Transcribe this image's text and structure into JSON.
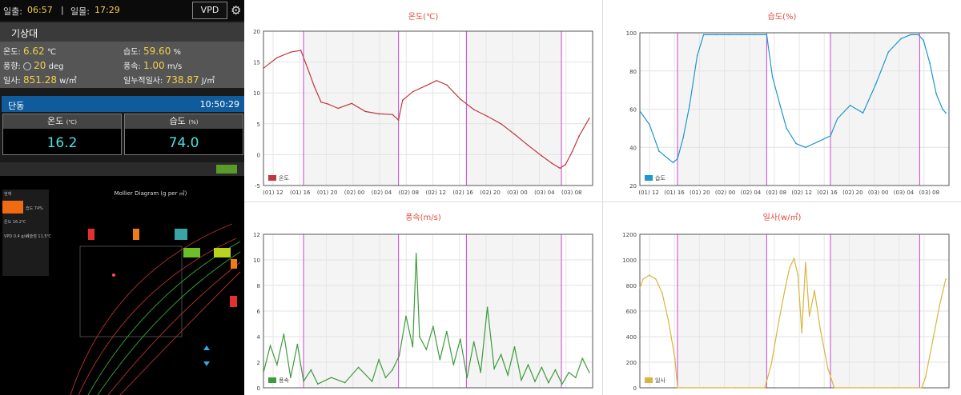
{
  "topbar": {
    "sunrise_label": "일출:",
    "sunrise_time": "06:57",
    "separator": "|",
    "sunset_label": "일몰:",
    "sunset_time": "17:29",
    "vpd_label": "VPD",
    "settings_icon": "gear-icon"
  },
  "weather": {
    "title": "기상대",
    "temp_label": "온도:",
    "temp_value": "6.62",
    "temp_unit": "℃",
    "humidity_label": "습도:",
    "humidity_value": "59.60",
    "humidity_unit": "%",
    "wind_dir_label": "풍향:",
    "wind_dir_value": "20",
    "wind_dir_unit": "deg",
    "wind_speed_label": "풍속:",
    "wind_speed_value": "1.00",
    "wind_speed_unit": "m/s",
    "solar_label": "일사:",
    "solar_value": "851.28",
    "solar_unit": "w/㎡",
    "cum_solar_label": "일누적일사:",
    "cum_solar_value": "738.87",
    "cum_solar_unit": "J/㎡"
  },
  "dong": {
    "name": "단동",
    "time": "10:50:29",
    "temp_label": "온도",
    "temp_unit": "(℃)",
    "temp_value": "16.2",
    "humidity_label": "습도",
    "humidity_unit": "(%)",
    "humidity_value": "74.0"
  },
  "mollier": {
    "title": "Mollier Diagram (g per ㎥)",
    "panel_items": [
      "현재",
      "온도  16.2℃",
      "습도  74%",
      "VPD 0.4 g/㎥",
      "이슬점 11.5℃"
    ]
  },
  "colors": {
    "temp": "#c0393f",
    "humidity": "#1f97cc",
    "wind": "#3d9b3d",
    "solar": "#d9b53d",
    "title": "#e04a3c",
    "marker": "#cc44cc"
  },
  "chart_data": [
    {
      "type": "line",
      "title": "온도(℃)",
      "legend": "온도",
      "legend_position": "bottom-left",
      "grid": true,
      "x_range": [
        0,
        48.5
      ],
      "ylim": [
        -5,
        20
      ],
      "yticks": [
        "20",
        "15",
        "10",
        "5",
        "0",
        "-5"
      ],
      "ytick_values": [
        20,
        15,
        10,
        5,
        0,
        -5
      ],
      "xticks": [
        "(01) 12",
        "(01) 16",
        "(01) 20",
        "(02) 00",
        "(02) 04",
        "(02) 08",
        "(02) 12",
        "(02) 16",
        "(02) 20",
        "(03) 00",
        "(03) 04",
        "(03) 08"
      ],
      "xtick_values": [
        1.4,
        5.4,
        9.4,
        13.4,
        17.4,
        21.4,
        25.4,
        29.4,
        33.4,
        37.4,
        41.4,
        45.4
      ],
      "markers": [
        5.9,
        19.9,
        29.9,
        43.9
      ],
      "shade": [
        [
          5.9,
          19.9
        ],
        [
          29.9,
          43.9
        ]
      ],
      "x": [
        0,
        2,
        4,
        5.5,
        6.5,
        7.5,
        8.5,
        9.5,
        11,
        13,
        15,
        17,
        19,
        19.9,
        20.5,
        22,
        24,
        25.5,
        27,
        29,
        31,
        33,
        35,
        37,
        39,
        41,
        42.5,
        43.7,
        44.5,
        45.5,
        46.5,
        48
      ],
      "values": [
        14,
        15.7,
        16.6,
        16.9,
        14,
        11,
        8.5,
        8.2,
        7.5,
        8.3,
        7,
        6.6,
        6.5,
        5.6,
        8.8,
        10.2,
        11.2,
        12,
        11.3,
        9,
        7.3,
        6.2,
        5,
        3.3,
        1.5,
        -0.2,
        -1.4,
        -2.2,
        -1.6,
        0.5,
        3,
        5.9
      ]
    },
    {
      "type": "line",
      "title": "습도(%)",
      "legend": "습도",
      "legend_position": "bottom-left",
      "grid": true,
      "x_range": [
        0,
        48.5
      ],
      "ylim": [
        20,
        100
      ],
      "yticks": [
        "100",
        "80",
        "60",
        "40",
        "20"
      ],
      "ytick_values": [
        100,
        80,
        60,
        40,
        20
      ],
      "xticks": [
        "(01) 12",
        "(01) 16",
        "(01) 20",
        "(02) 00",
        "(02) 04",
        "(02) 08",
        "(02) 12",
        "(02) 16",
        "(02) 20",
        "(03) 00",
        "(03) 04",
        "(03) 08"
      ],
      "xtick_values": [
        1.4,
        5.4,
        9.4,
        13.4,
        17.4,
        21.4,
        25.4,
        29.4,
        33.4,
        37.4,
        41.4,
        45.4
      ],
      "markers": [
        5.9,
        19.9,
        29.9,
        43.9
      ],
      "shade": [
        [
          5.9,
          19.9
        ],
        [
          29.9,
          43.9
        ]
      ],
      "x": [
        0,
        1.5,
        3,
        5.2,
        5.9,
        6.8,
        7.8,
        9,
        10,
        12,
        14,
        16,
        18,
        19.9,
        20.8,
        22,
        23,
        24.5,
        26,
        28,
        29.9,
        31,
        33,
        35,
        37,
        39,
        41,
        42.5,
        43.7,
        44.5,
        45.5,
        46.5,
        47.5,
        48
      ],
      "values": [
        59,
        52,
        38,
        32,
        34,
        45,
        62,
        88,
        99,
        99,
        99,
        99,
        99,
        99,
        77,
        62,
        50,
        42,
        40,
        43,
        46,
        55,
        62,
        58,
        73,
        90,
        97,
        99,
        99,
        96,
        84,
        68,
        60,
        58
      ]
    },
    {
      "type": "line",
      "title": "풍속(m/s)",
      "legend": "풍속",
      "legend_position": "bottom-left",
      "grid": true,
      "x_range": [
        0,
        48.5
      ],
      "ylim": [
        0,
        12
      ],
      "yticks": [
        "12",
        "10",
        "8",
        "6",
        "4",
        "2",
        "0"
      ],
      "ytick_values": [
        12,
        10,
        8,
        6,
        4,
        2,
        0
      ],
      "xticks": [],
      "xtick_values": [],
      "markers": [
        5.9,
        19.9,
        29.9,
        43.9
      ],
      "shade": [
        [
          5.9,
          19.9
        ],
        [
          29.9,
          43.9
        ]
      ],
      "x": [
        0,
        1,
        2,
        3,
        4,
        5,
        5.9,
        7,
        8,
        10,
        12,
        14,
        16,
        17,
        18,
        19,
        20,
        21,
        22,
        22.5,
        23,
        24,
        25,
        26,
        27,
        28,
        29,
        30,
        31,
        32,
        33,
        34,
        35,
        36,
        37,
        38,
        39,
        40,
        41,
        42,
        43,
        44,
        45,
        46,
        47,
        48
      ],
      "values": [
        1.2,
        3.3,
        1.8,
        4.2,
        0.8,
        3.4,
        0.5,
        1.4,
        0.3,
        0.8,
        0.4,
        1.6,
        0.5,
        2.2,
        0.8,
        1.4,
        2.5,
        5.6,
        3.2,
        10.5,
        4,
        3,
        4.8,
        2.2,
        4.4,
        1.8,
        3.8,
        0.8,
        3.6,
        1.2,
        6.3,
        1.5,
        2.6,
        1,
        3.2,
        0.6,
        1.8,
        0.5,
        1.6,
        0.4,
        1.4,
        0.3,
        1.2,
        0.8,
        2.3,
        1.2
      ]
    },
    {
      "type": "line",
      "title": "일사(w/㎡)",
      "legend": "일사",
      "legend_position": "bottom-left",
      "grid": true,
      "x_range": [
        0,
        48.5
      ],
      "ylim": [
        0,
        1200
      ],
      "yticks": [
        "1200",
        "1000",
        "800",
        "600",
        "400",
        "200",
        "0"
      ],
      "ytick_values": [
        1200,
        1000,
        800,
        600,
        400,
        200,
        0
      ],
      "xticks": [],
      "xtick_values": [],
      "markers": [
        5.9,
        19.9,
        29.9,
        43.9
      ],
      "shade": [
        [
          5.9,
          19.9
        ],
        [
          29.9,
          43.9
        ]
      ],
      "x": [
        0,
        0.5,
        1.5,
        2.5,
        3.5,
        4.5,
        5.5,
        5.9,
        6.5,
        10,
        15,
        19.6,
        20.6,
        21.8,
        22.8,
        23.5,
        24.2,
        24.8,
        25.4,
        26,
        26.6,
        27.4,
        28.3,
        29.5,
        30.5,
        35,
        40,
        44.2,
        44.8,
        46,
        47,
        48
      ],
      "values": [
        780,
        850,
        880,
        850,
        740,
        520,
        230,
        0,
        0,
        0,
        0,
        0,
        180,
        520,
        780,
        940,
        1010,
        880,
        430,
        980,
        560,
        760,
        460,
        150,
        0,
        0,
        0,
        0,
        80,
        380,
        640,
        850
      ]
    }
  ]
}
